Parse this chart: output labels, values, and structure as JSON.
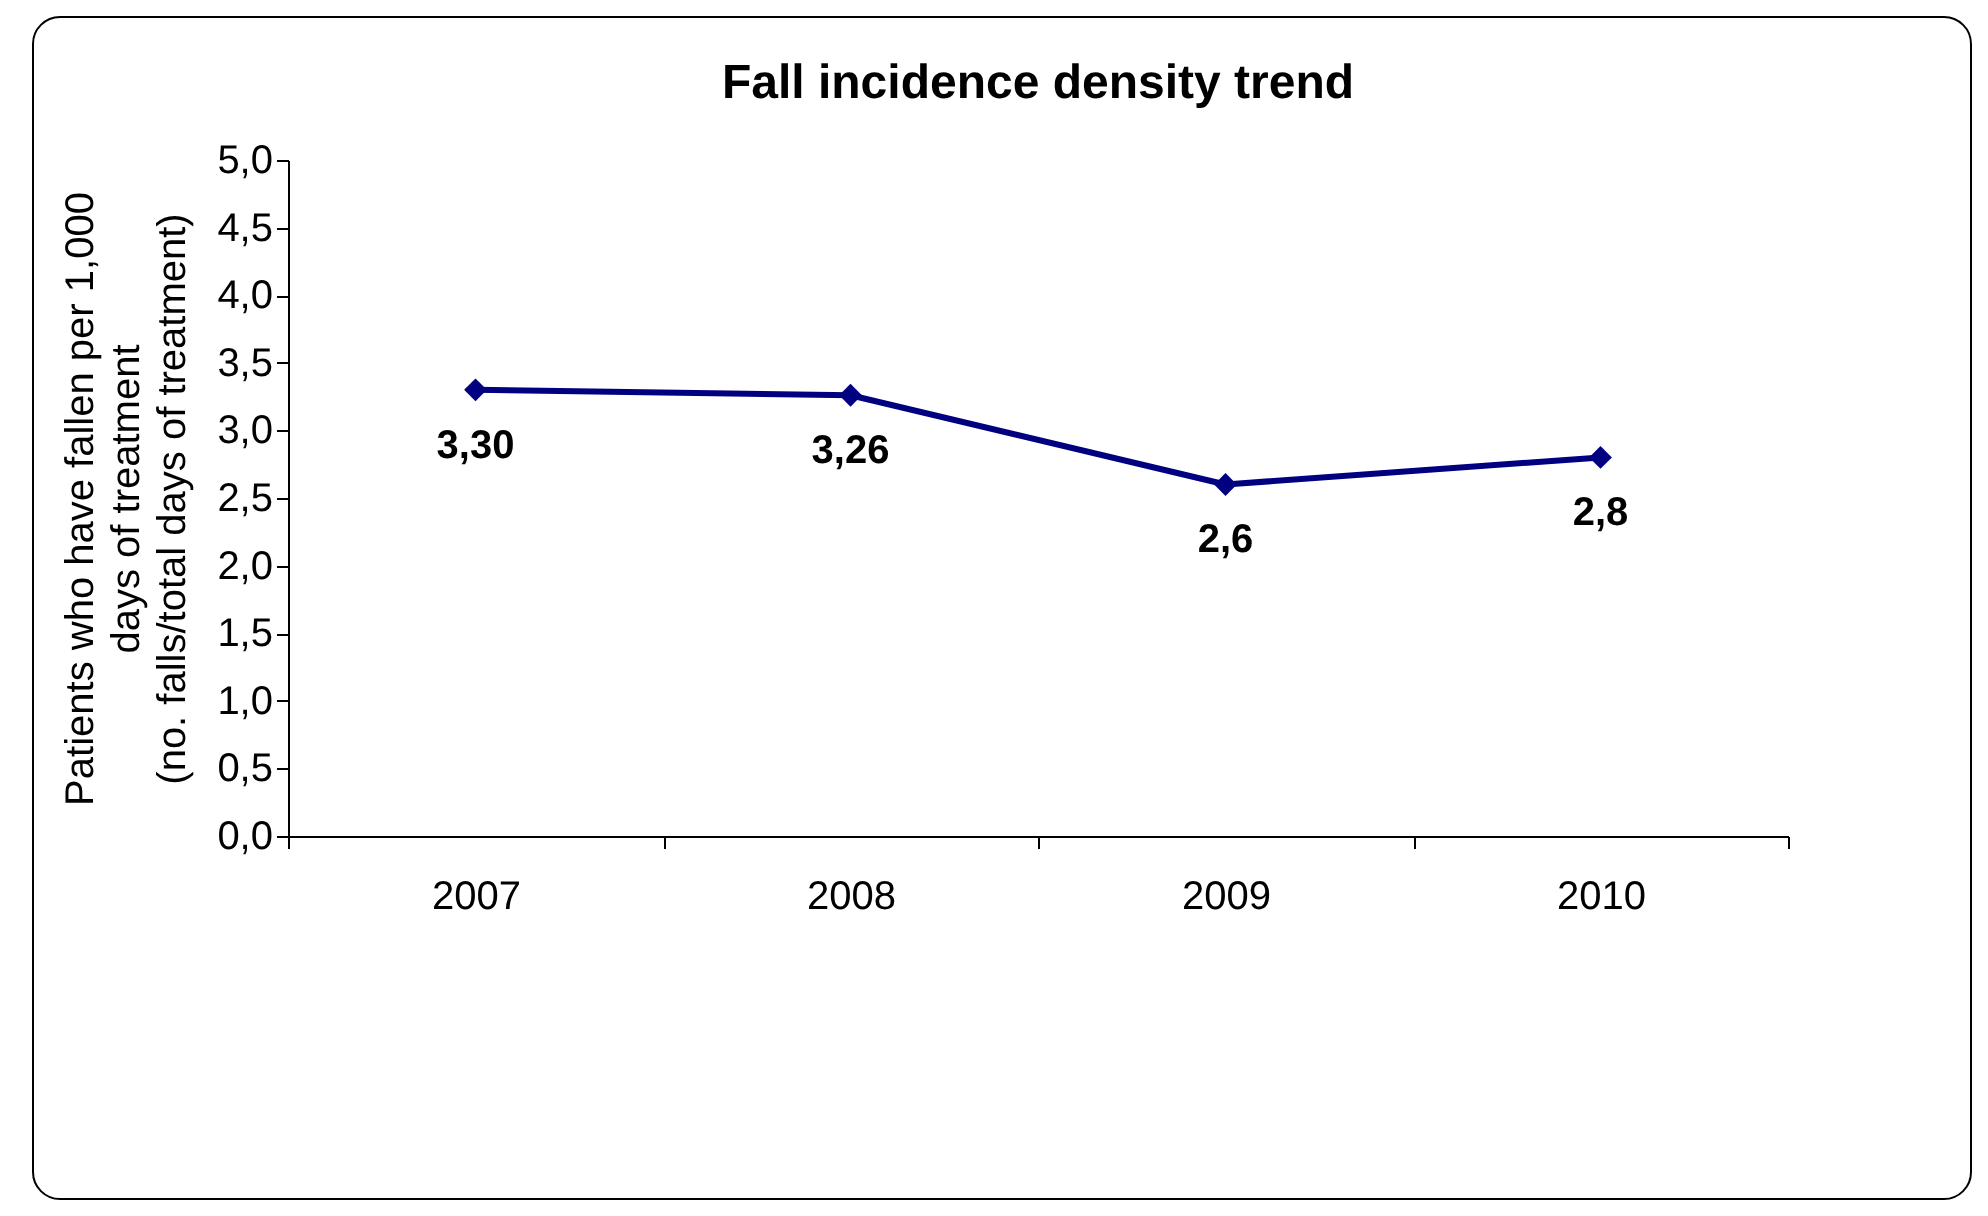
{
  "chart_data": {
    "type": "line",
    "title": "Fall incidence density trend",
    "ylabel": "Patients who have fallen per 1,000\ndays of treatment\n(no. falls/total days of treatment)",
    "categories": [
      "2007",
      "2008",
      "2009",
      "2010"
    ],
    "series": [
      {
        "color": "#000080",
        "values": [
          3.3,
          3.26,
          2.6,
          2.8
        ],
        "value_labels": [
          "3,30",
          "3,26",
          "2,6",
          "2,8"
        ]
      }
    ],
    "ylim": [
      0,
      5
    ],
    "yticks": [
      {
        "value": 0,
        "label": "0,0"
      },
      {
        "value": 0.5,
        "label": "0,5"
      },
      {
        "value": 1,
        "label": "1,0"
      },
      {
        "value": 1.5,
        "label": "1,5"
      },
      {
        "value": 2,
        "label": "2,0"
      },
      {
        "value": 2.5,
        "label": "2,5"
      },
      {
        "value": 3,
        "label": "3,0"
      },
      {
        "value": 3.5,
        "label": "3,5"
      },
      {
        "value": 4,
        "label": "4,0"
      },
      {
        "value": 4.5,
        "label": "4,5"
      },
      {
        "value": 5,
        "label": "5,0"
      }
    ],
    "grid": false,
    "marker": "diamond",
    "line_style": "solid"
  }
}
